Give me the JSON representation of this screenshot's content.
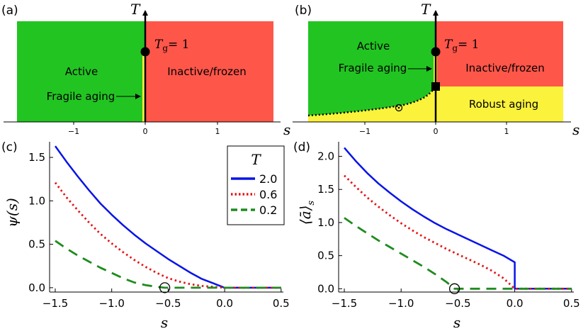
{
  "chart_data": [
    {
      "panel": "(a)",
      "type": "phase-diagram",
      "xlabel": "s",
      "ylabel": "T",
      "xticks": [
        "−1",
        "0",
        "1"
      ],
      "tg_label": "T",
      "tg_sub": "g",
      "tg_value": "= 1",
      "regions": {
        "active": "Active",
        "inactive": "Inactive/frozen",
        "fragile": "Fragile aging"
      },
      "colors": {
        "active": "#22c422",
        "inactive": "#ff564a",
        "aging": "#fbf23c"
      }
    },
    {
      "panel": "(b)",
      "type": "phase-diagram",
      "xlabel": "s",
      "ylabel": "T",
      "xticks": [
        "−1",
        "0",
        "1"
      ],
      "tg_label": "T",
      "tg_sub": "g",
      "tg_value": "= 1",
      "regions": {
        "active": "Active",
        "inactive": "Inactive/frozen",
        "fragile": "Fragile aging",
        "robust": "Robust aging"
      },
      "colors": {
        "active": "#22c422",
        "inactive": "#ff564a",
        "aging": "#fbf23c"
      }
    },
    {
      "panel": "(c)",
      "type": "line",
      "xlabel": "s",
      "ylabel": "ψ(s)",
      "xlim": [
        -1.55,
        0.52
      ],
      "ylim": [
        -0.05,
        1.68
      ],
      "xticks": [
        -1.5,
        -1.0,
        -0.5,
        0.0,
        0.5
      ],
      "xtick_labels": [
        "−1.5",
        "−1.0",
        "−0.5",
        "0.0",
        "0.5"
      ],
      "yticks": [
        0.0,
        0.5,
        1.0,
        1.5
      ],
      "ytick_labels": [
        "0.0",
        "0.5",
        "1.0",
        "1.5"
      ],
      "legend_title": "T",
      "legend_position": "top-right",
      "marker": {
        "s": -0.53,
        "value": 0.0
      },
      "series": [
        {
          "name": "2.0",
          "color": "#0a14e6",
          "dash": "solid",
          "x": [
            -1.5,
            -1.4,
            -1.3,
            -1.2,
            -1.1,
            -1.0,
            -0.9,
            -0.8,
            -0.7,
            -0.6,
            -0.5,
            -0.4,
            -0.3,
            -0.2,
            -0.1,
            0.0,
            0.5
          ],
          "y": [
            1.63,
            1.45,
            1.28,
            1.12,
            0.97,
            0.84,
            0.72,
            0.61,
            0.51,
            0.42,
            0.33,
            0.25,
            0.17,
            0.1,
            0.05,
            0.0,
            0.0
          ]
        },
        {
          "name": "0.6",
          "color": "#e61414",
          "dash": "dot",
          "x": [
            -1.5,
            -1.4,
            -1.3,
            -1.2,
            -1.1,
            -1.0,
            -0.9,
            -0.8,
            -0.7,
            -0.6,
            -0.5,
            -0.4,
            -0.3,
            -0.2,
            -0.1,
            0.0,
            0.5
          ],
          "y": [
            1.21,
            1.04,
            0.89,
            0.75,
            0.62,
            0.51,
            0.41,
            0.32,
            0.24,
            0.17,
            0.11,
            0.07,
            0.04,
            0.02,
            0.01,
            0.0,
            0.0
          ]
        },
        {
          "name": "0.2",
          "color": "#1e8c1e",
          "dash": "dash",
          "x": [
            -1.5,
            -1.4,
            -1.3,
            -1.2,
            -1.1,
            -1.0,
            -0.9,
            -0.8,
            -0.7,
            -0.6,
            -0.53,
            0.5
          ],
          "y": [
            0.54,
            0.45,
            0.37,
            0.3,
            0.23,
            0.17,
            0.11,
            0.06,
            0.03,
            0.01,
            0.0,
            0.0
          ]
        }
      ]
    },
    {
      "panel": "(d)",
      "type": "line",
      "xlabel": "s",
      "ylabel": "⟨ā⟩",
      "ylabel_sub": "s",
      "xlim": [
        -1.55,
        0.52
      ],
      "ylim": [
        -0.05,
        2.22
      ],
      "xticks": [
        -1.5,
        -1.0,
        -0.5,
        0.0,
        0.5
      ],
      "xtick_labels": [
        "−1.5",
        "−1.0",
        "−0.5",
        "0.0",
        "0.5"
      ],
      "yticks": [
        0.0,
        0.5,
        1.0,
        1.5,
        2.0
      ],
      "ytick_labels": [
        "0.0",
        "0.5",
        "1.0",
        "1.5",
        "2.0"
      ],
      "marker": {
        "s": -0.53,
        "value": 0.0
      },
      "series": [
        {
          "name": "2.0",
          "color": "#0a14e6",
          "dash": "solid",
          "x": [
            -1.5,
            -1.4,
            -1.3,
            -1.2,
            -1.1,
            -1.0,
            -0.9,
            -0.8,
            -0.7,
            -0.6,
            -0.5,
            -0.4,
            -0.3,
            -0.2,
            -0.1,
            0.0,
            0.0,
            0.5
          ],
          "y": [
            2.13,
            1.93,
            1.75,
            1.59,
            1.45,
            1.32,
            1.2,
            1.09,
            0.99,
            0.9,
            0.82,
            0.74,
            0.66,
            0.58,
            0.5,
            0.4,
            0.0,
            0.0
          ]
        },
        {
          "name": "0.6",
          "color": "#e61414",
          "dash": "dot",
          "x": [
            -1.5,
            -1.4,
            -1.3,
            -1.2,
            -1.1,
            -1.0,
            -0.9,
            -0.8,
            -0.7,
            -0.6,
            -0.5,
            -0.4,
            -0.3,
            -0.2,
            -0.1,
            0.0,
            0.5
          ],
          "y": [
            1.71,
            1.54,
            1.38,
            1.24,
            1.11,
            0.99,
            0.88,
            0.78,
            0.69,
            0.6,
            0.52,
            0.44,
            0.36,
            0.27,
            0.16,
            0.0,
            0.0
          ]
        },
        {
          "name": "0.2",
          "color": "#1e8c1e",
          "dash": "dash",
          "x": [
            -1.5,
            -1.4,
            -1.3,
            -1.2,
            -1.1,
            -1.0,
            -0.9,
            -0.8,
            -0.7,
            -0.6,
            -0.53,
            0.5
          ],
          "y": [
            1.07,
            0.95,
            0.84,
            0.73,
            0.63,
            0.53,
            0.43,
            0.33,
            0.22,
            0.1,
            0.0,
            0.0
          ]
        }
      ]
    }
  ]
}
